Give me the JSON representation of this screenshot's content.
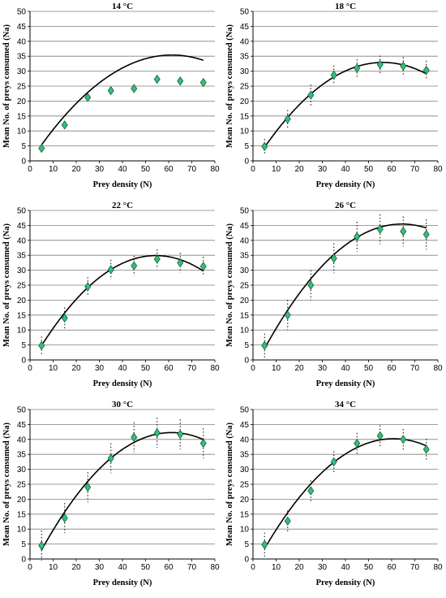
{
  "colors": {
    "marker_fill": "#2ec27e",
    "marker_stroke": "#1a5c32",
    "curve": "#000000",
    "grid": "#7f7f7f"
  },
  "chart_data": [
    {
      "type": "scatter",
      "title": "14 °C",
      "xlabel": "Prey density (N)",
      "ylabel": "Mean No. of preys consumed (Na)",
      "xlim": [
        0,
        80
      ],
      "ylim": [
        0,
        50
      ],
      "xticks": [
        "0",
        "10",
        "20",
        "30",
        "40",
        "50",
        "60",
        "70",
        "80"
      ],
      "yticks": [
        "0",
        "5",
        "10",
        "15",
        "20",
        "25",
        "30",
        "35",
        "40",
        "45",
        "50"
      ],
      "grid": true,
      "x": [
        5,
        15,
        25,
        35,
        45,
        55,
        65,
        75
      ],
      "y": [
        4.2,
        12.0,
        21.2,
        23.5,
        24.2,
        27.3,
        26.7,
        26.2
      ],
      "err": [
        1.0,
        1.0,
        1.0,
        1.2,
        1.2,
        1.3,
        1.3,
        1.3
      ],
      "curve_a": -0.2,
      "curve_b": 1.16,
      "curve_c": -0.00945
    },
    {
      "type": "scatter",
      "title": "18 °C",
      "xlabel": "Prey density (N)",
      "ylabel": "Mean No. of preys consumed (Na)",
      "xlim": [
        0,
        80
      ],
      "ylim": [
        0,
        50
      ],
      "xticks": [
        "0",
        "10",
        "20",
        "30",
        "40",
        "50",
        "60",
        "70",
        "80"
      ],
      "yticks": [
        "0",
        "5",
        "10",
        "15",
        "20",
        "25",
        "30",
        "35",
        "40",
        "45",
        "50"
      ],
      "grid": true,
      "x": [
        5,
        15,
        25,
        35,
        45,
        55,
        65,
        75
      ],
      "y": [
        4.8,
        14.0,
        22.0,
        28.7,
        31.0,
        32.2,
        31.7,
        30.3
      ],
      "err": [
        2.5,
        3.0,
        3.5,
        3.2,
        3.0,
        3.0,
        3.0,
        3.2
      ],
      "curve_a": -1.25,
      "curve_b": 1.215,
      "curve_c": -0.0108
    },
    {
      "type": "scatter",
      "title": "22 °C",
      "xlabel": "Prey density (N)",
      "ylabel": "Mean No. of preys consumed (Na)",
      "xlim": [
        0,
        80
      ],
      "ylim": [
        0,
        50
      ],
      "xticks": [
        "0",
        "10",
        "20",
        "30",
        "40",
        "50",
        "60",
        "70",
        "80"
      ],
      "yticks": [
        "0",
        "5",
        "10",
        "15",
        "20",
        "25",
        "30",
        "35",
        "40",
        "45",
        "50"
      ],
      "grid": true,
      "x": [
        5,
        15,
        25,
        35,
        45,
        55,
        65,
        75
      ],
      "y": [
        4.8,
        14.0,
        24.5,
        30.2,
        31.5,
        33.7,
        32.5,
        31.3
      ],
      "err": [
        3.0,
        3.5,
        3.2,
        3.3,
        3.3,
        3.3,
        3.3,
        3.2
      ],
      "curve_a": -1.6,
      "curve_b": 1.34,
      "curve_c": -0.0123
    },
    {
      "type": "scatter",
      "title": "26 °C",
      "xlabel": "Prey density (N)",
      "ylabel": "Mean No. of preys consumed (Na)",
      "xlim": [
        0,
        80
      ],
      "ylim": [
        0,
        50
      ],
      "xticks": [
        "0",
        "10",
        "20",
        "30",
        "40",
        "50",
        "60",
        "70",
        "80"
      ],
      "yticks": [
        "0",
        "5",
        "10",
        "15",
        "20",
        "25",
        "30",
        "35",
        "40",
        "45",
        "50"
      ],
      "grid": true,
      "x": [
        5,
        15,
        25,
        35,
        45,
        55,
        65,
        75
      ],
      "y": [
        4.8,
        15.0,
        25.0,
        34.0,
        41.2,
        43.7,
        43.0,
        42.0
      ],
      "err": [
        4.0,
        5.0,
        5.0,
        5.0,
        5.0,
        5.0,
        5.0,
        5.0
      ],
      "curve_a": -3.5,
      "curve_b": 1.52,
      "curve_c": -0.0118
    },
    {
      "type": "scatter",
      "title": "30 °C",
      "xlabel": "Prey density (N)",
      "ylabel": "Mean No. of preys consumed (Na)",
      "xlim": [
        0,
        80
      ],
      "ylim": [
        0,
        50
      ],
      "xticks": [
        "0",
        "10",
        "20",
        "30",
        "40",
        "50",
        "60",
        "70",
        "80"
      ],
      "yticks": [
        "0",
        "5",
        "10",
        "15",
        "20",
        "25",
        "30",
        "35",
        "40",
        "45",
        "50"
      ],
      "grid": true,
      "x": [
        5,
        15,
        25,
        35,
        45,
        55,
        65,
        75
      ],
      "y": [
        4.5,
        13.7,
        24.0,
        33.7,
        40.7,
        42.2,
        41.7,
        38.7
      ],
      "err": [
        5.0,
        5.0,
        5.0,
        5.0,
        5.0,
        5.0,
        5.0,
        5.0
      ],
      "curve_a": -4.3,
      "curve_b": 1.52,
      "curve_c": -0.0124
    },
    {
      "type": "scatter",
      "title": "34 °C",
      "xlabel": "Prey density (N)",
      "ylabel": "Mean No. of preys consumed (Na)",
      "xlim": [
        0,
        80
      ],
      "ylim": [
        0,
        50
      ],
      "xticks": [
        "0",
        "10",
        "20",
        "30",
        "40",
        "50",
        "60",
        "70",
        "80"
      ],
      "yticks": [
        "0",
        "5",
        "10",
        "15",
        "20",
        "25",
        "30",
        "35",
        "40",
        "45",
        "50"
      ],
      "grid": true,
      "x": [
        5,
        15,
        25,
        35,
        45,
        55,
        65,
        75
      ],
      "y": [
        4.8,
        12.7,
        22.8,
        32.5,
        38.7,
        41.2,
        40.0,
        36.7
      ],
      "err": [
        4.0,
        3.5,
        3.5,
        3.5,
        3.5,
        3.5,
        3.5,
        3.5
      ],
      "curve_a": -3.4,
      "curve_b": 1.435,
      "curve_c": -0.0118
    }
  ]
}
